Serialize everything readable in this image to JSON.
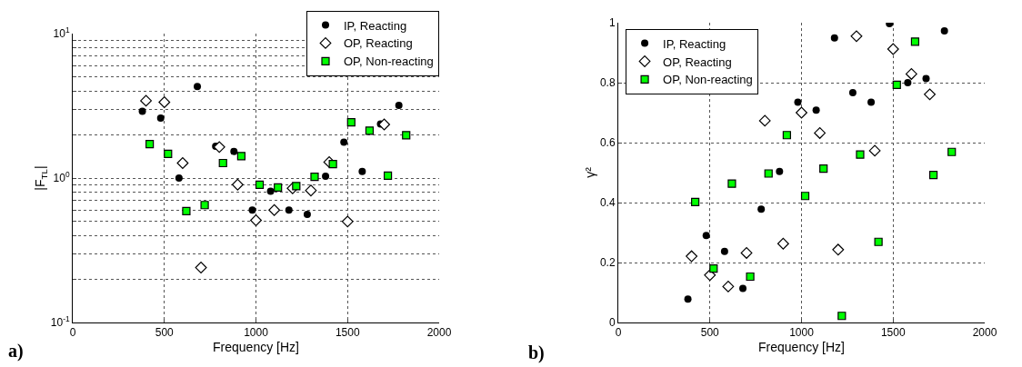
{
  "chart_data": [
    {
      "type": "scatter",
      "xlabel": "Frequency [Hz]",
      "ylabel": "|F$_{TL}$|",
      "annotations": [
        "a)"
      ],
      "log": "y",
      "grid": true,
      "legend": "top right",
      "xlim": [
        0,
        2000
      ],
      "xticks": [
        0,
        500,
        1000,
        1500,
        2000
      ],
      "ylim": [
        0.1,
        10
      ],
      "yticks": [
        {
          "value": 0.1,
          "label": "10$^{-1}$"
        },
        {
          "value": 0.2,
          "label": null
        },
        {
          "value": 0.3,
          "label": null
        },
        {
          "value": 0.4,
          "label": null
        },
        {
          "value": 0.5,
          "label": null
        },
        {
          "value": 0.6,
          "label": null
        },
        {
          "value": 0.7,
          "label": null
        },
        {
          "value": 0.8,
          "label": null
        },
        {
          "value": 0.9,
          "label": null
        },
        {
          "value": 1,
          "label": "10$^{0}$"
        },
        {
          "value": 2,
          "label": null
        },
        {
          "value": 3,
          "label": null
        },
        {
          "value": 4,
          "label": null
        },
        {
          "value": 5,
          "label": null
        },
        {
          "value": 6,
          "label": null
        },
        {
          "value": 7,
          "label": null
        },
        {
          "value": 8,
          "label": null
        },
        {
          "value": 9,
          "label": null
        },
        {
          "value": 10,
          "label": "10$^{1}$"
        }
      ],
      "series": [
        {
          "name": "IP, Reacting",
          "color": "#000000",
          "marker": "circle",
          "x": [
            380,
            480,
            580,
            680,
            780,
            880,
            980,
            1080,
            1180,
            1280,
            1380,
            1480,
            1580,
            1680,
            1780
          ],
          "values": [
            2.9,
            2.6,
            1.0,
            4.3,
            1.66,
            1.53,
            0.6,
            0.81,
            0.6,
            0.56,
            1.03,
            1.77,
            1.11,
            2.37,
            3.18
          ]
        },
        {
          "name": "OP, Reacting",
          "color": "#ffffff",
          "marker": "diamond",
          "x": [
            400,
            500,
            600,
            700,
            800,
            900,
            1000,
            1100,
            1200,
            1300,
            1400,
            1500,
            1600,
            1700
          ],
          "values": [
            3.43,
            3.35,
            1.27,
            0.24,
            1.64,
            0.9,
            0.51,
            0.6,
            0.85,
            0.82,
            1.29,
            0.5,
            null,
            2.35
          ]
        },
        {
          "name": "OP, Non-reacting",
          "color": "#00ff00",
          "marker": "square",
          "x": [
            420,
            520,
            620,
            720,
            820,
            920,
            1020,
            1120,
            1220,
            1320,
            1420,
            1520,
            1620,
            1720,
            1820
          ],
          "values": [
            1.72,
            1.47,
            0.59,
            0.65,
            1.27,
            1.42,
            0.9,
            0.86,
            0.88,
            1.02,
            1.25,
            2.43,
            2.13,
            1.04,
            1.98
          ]
        }
      ]
    },
    {
      "type": "scatter",
      "xlabel": "Frequency [Hz]",
      "ylabel": "γ²",
      "annotations": [
        "b)"
      ],
      "grid": true,
      "legend": "top left",
      "xlim": [
        0,
        2000
      ],
      "xticks": [
        0,
        500,
        1000,
        1500,
        2000
      ],
      "ylim": [
        0,
        1
      ],
      "yticks": [
        0,
        0.2,
        0.4,
        0.6,
        0.8,
        1
      ],
      "series": [
        {
          "name": "IP, Reacting",
          "color": "#000000",
          "marker": "circle",
          "x": [
            380,
            480,
            580,
            680,
            780,
            880,
            980,
            1080,
            1180,
            1280,
            1380,
            1480,
            1580,
            1680,
            1780
          ],
          "values": [
            0.078,
            0.29,
            0.237,
            0.114,
            0.378,
            0.504,
            0.735,
            0.708,
            0.949,
            0.767,
            0.735,
            0.997,
            0.8,
            0.814,
            0.973
          ]
        },
        {
          "name": "OP, Reacting",
          "color": "#ffffff",
          "marker": "diamond",
          "x": [
            400,
            500,
            600,
            700,
            800,
            900,
            1000,
            1100,
            1200,
            1300,
            1400,
            1500,
            1600,
            1700
          ],
          "values": [
            0.221,
            0.158,
            0.12,
            0.232,
            0.673,
            0.263,
            0.7,
            0.632,
            0.243,
            0.955,
            0.573,
            0.912,
            0.829,
            0.761
          ]
        },
        {
          "name": "OP, Non-reacting",
          "color": "#00ff00",
          "marker": "square",
          "x": [
            420,
            520,
            620,
            720,
            820,
            920,
            1020,
            1120,
            1220,
            1320,
            1420,
            1520,
            1620,
            1720,
            1820
          ],
          "values": [
            0.402,
            0.18,
            0.463,
            0.153,
            0.497,
            0.625,
            0.422,
            0.513,
            0.022,
            0.56,
            0.269,
            0.793,
            0.937,
            0.492,
            0.569
          ]
        }
      ]
    }
  ]
}
